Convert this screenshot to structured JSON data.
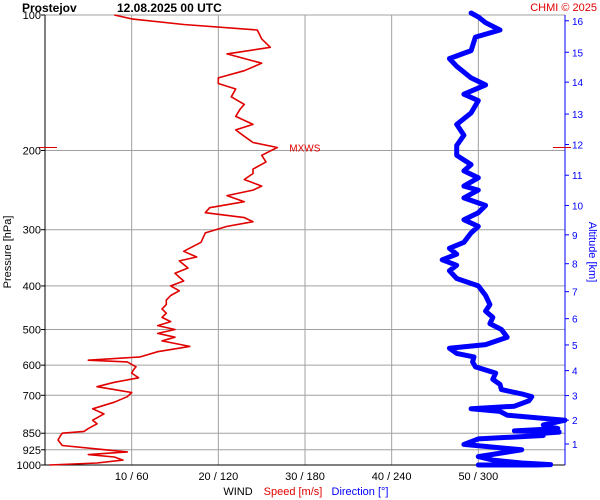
{
  "header": {
    "station": "Prostejov",
    "datetime": "12.08.2025 00 UTC",
    "credit": "CHMI © 2025"
  },
  "colors": {
    "speed": "#e00000",
    "direction": "#0000ff",
    "grid": "#a0a0a0",
    "axis": "#000000"
  },
  "chart_data": {
    "type": "line",
    "ylabel": "Pressure [hPa]",
    "y_scale": "log",
    "ylim": [
      1000,
      100
    ],
    "pressure_ticks": [
      100,
      200,
      300,
      400,
      500,
      600,
      700,
      850,
      925,
      1000
    ],
    "altitude_label": "Altitude [km]",
    "altitude_ticks": [
      {
        "km": 1,
        "hpa": 898
      },
      {
        "km": 2,
        "hpa": 795
      },
      {
        "km": 3,
        "hpa": 701
      },
      {
        "km": 4,
        "hpa": 617
      },
      {
        "km": 5,
        "hpa": 541
      },
      {
        "km": 6,
        "hpa": 473
      },
      {
        "km": 7,
        "hpa": 412
      },
      {
        "km": 8,
        "hpa": 357
      },
      {
        "km": 9,
        "hpa": 308
      },
      {
        "km": 10,
        "hpa": 265
      },
      {
        "km": 11,
        "hpa": 227
      },
      {
        "km": 12,
        "hpa": 194
      },
      {
        "km": 13,
        "hpa": 166
      },
      {
        "km": 14,
        "hpa": 141
      },
      {
        "km": 15,
        "hpa": 121
      },
      {
        "km": 16,
        "hpa": 103
      }
    ],
    "x_ticks": [
      {
        "speed": 10,
        "dir": 60,
        "label": "10 / 60"
      },
      {
        "speed": 20,
        "dir": 120,
        "label": "20 / 120"
      },
      {
        "speed": 30,
        "dir": 180,
        "label": "30 / 180"
      },
      {
        "speed": 40,
        "dir": 240,
        "label": "40 / 240"
      },
      {
        "speed": 50,
        "dir": 300,
        "label": "50 / 300"
      }
    ],
    "xlabel": {
      "wind": "WIND",
      "speed": "Speed [m/s]",
      "direction": "Direction [°]"
    },
    "speed_xlim": [
      0,
      60
    ],
    "direction_xlim": [
      0,
      360
    ],
    "mxws": {
      "label": "MXWS",
      "hpa": 197,
      "speed": 26.8
    },
    "series": [
      {
        "name": "Speed [m/s]",
        "values": [
          [
            1000,
            0.5
          ],
          [
            990,
            6
          ],
          [
            975,
            9
          ],
          [
            960,
            8
          ],
          [
            948,
            5
          ],
          [
            935,
            9.5
          ],
          [
            925,
            7
          ],
          [
            905,
            2
          ],
          [
            880,
            1.5
          ],
          [
            860,
            1.8
          ],
          [
            850,
            2
          ],
          [
            842,
            4.5
          ],
          [
            830,
            5
          ],
          [
            810,
            6
          ],
          [
            795,
            5.5
          ],
          [
            770,
            6.8
          ],
          [
            750,
            5.5
          ],
          [
            725,
            8
          ],
          [
            705,
            9.5
          ],
          [
            690,
            10
          ],
          [
            680,
            8
          ],
          [
            670,
            6
          ],
          [
            655,
            8
          ],
          [
            640,
            10.8
          ],
          [
            625,
            10
          ],
          [
            615,
            10.2
          ],
          [
            605,
            10.5
          ],
          [
            590,
            9.5
          ],
          [
            585,
            5
          ],
          [
            575,
            11
          ],
          [
            560,
            13
          ],
          [
            545,
            16.7
          ],
          [
            530,
            13.5
          ],
          [
            520,
            15
          ],
          [
            510,
            13
          ],
          [
            500,
            15
          ],
          [
            490,
            13
          ],
          [
            480,
            14.5
          ],
          [
            470,
            13.5
          ],
          [
            460,
            14
          ],
          [
            450,
            13.5
          ],
          [
            440,
            14
          ],
          [
            430,
            14
          ],
          [
            420,
            14.5
          ],
          [
            410,
            15.5
          ],
          [
            400,
            14.5
          ],
          [
            390,
            16
          ],
          [
            375,
            15
          ],
          [
            365,
            16.5
          ],
          [
            352,
            15.5
          ],
          [
            345,
            17.5
          ],
          [
            335,
            16
          ],
          [
            320,
            18
          ],
          [
            305,
            18.5
          ],
          [
            295,
            21
          ],
          [
            288,
            24
          ],
          [
            282,
            23
          ],
          [
            275,
            18.5
          ],
          [
            268,
            19
          ],
          [
            260,
            23
          ],
          [
            252,
            21
          ],
          [
            245,
            24
          ],
          [
            240,
            25
          ],
          [
            232,
            23
          ],
          [
            225,
            24
          ],
          [
            220,
            24
          ],
          [
            212,
            25.5
          ],
          [
            205,
            25
          ],
          [
            197,
            26.8
          ],
          [
            192,
            24
          ],
          [
            186,
            23
          ],
          [
            180,
            22
          ],
          [
            175,
            24
          ],
          [
            168,
            22
          ],
          [
            162,
            22.5
          ],
          [
            158,
            23
          ],
          [
            152,
            21.5
          ],
          [
            146,
            22
          ],
          [
            142,
            20
          ],
          [
            138,
            20
          ],
          [
            133,
            23
          ],
          [
            128,
            25
          ],
          [
            122,
            21
          ],
          [
            118,
            26
          ],
          [
            113,
            25
          ],
          [
            108,
            24.5
          ],
          [
            105,
            16
          ],
          [
            102,
            10
          ],
          [
            100,
            8
          ]
        ]
      },
      {
        "name": "Direction [°]",
        "values": [
          [
            1000,
            300
          ],
          [
            1000,
            340
          ],
          [
            998,
            350
          ],
          [
            990,
            330
          ],
          [
            975,
            310
          ],
          [
            958,
            300
          ],
          [
            925,
            330
          ],
          [
            900,
            290
          ],
          [
            875,
            300
          ],
          [
            860,
            345
          ],
          [
            851,
            342
          ],
          [
            845,
            356
          ],
          [
            840,
            325
          ],
          [
            830,
            355
          ],
          [
            815,
            345
          ],
          [
            795,
            360
          ],
          [
            775,
            320
          ],
          [
            760,
            315
          ],
          [
            750,
            295
          ],
          [
            740,
            325
          ],
          [
            720,
            335
          ],
          [
            705,
            337
          ],
          [
            695,
            330
          ],
          [
            680,
            316
          ],
          [
            662,
            315
          ],
          [
            645,
            310
          ],
          [
            625,
            312
          ],
          [
            605,
            298
          ],
          [
            590,
            296
          ],
          [
            575,
            297
          ],
          [
            565,
            285
          ],
          [
            550,
            280
          ],
          [
            540,
            305
          ],
          [
            520,
            320
          ],
          [
            500,
            316
          ],
          [
            485,
            308
          ],
          [
            470,
            310
          ],
          [
            455,
            305
          ],
          [
            440,
            308
          ],
          [
            420,
            305
          ],
          [
            400,
            300
          ],
          [
            385,
            285
          ],
          [
            370,
            280
          ],
          [
            360,
            285
          ],
          [
            350,
            275
          ],
          [
            340,
            285
          ],
          [
            330,
            280
          ],
          [
            320,
            290
          ],
          [
            305,
            295
          ],
          [
            295,
            300
          ],
          [
            285,
            290
          ],
          [
            275,
            300
          ],
          [
            265,
            305
          ],
          [
            255,
            290
          ],
          [
            245,
            300
          ],
          [
            240,
            290
          ],
          [
            230,
            300
          ],
          [
            222,
            290
          ],
          [
            215,
            295
          ],
          [
            205,
            285
          ],
          [
            195,
            285
          ],
          [
            185,
            290
          ],
          [
            175,
            285
          ],
          [
            165,
            295
          ],
          [
            155,
            300
          ],
          [
            150,
            290
          ],
          [
            143,
            305
          ],
          [
            138,
            295
          ],
          [
            130,
            285
          ],
          [
            125,
            280
          ],
          [
            120,
            295
          ],
          [
            112,
            298
          ],
          [
            108,
            315
          ],
          [
            104,
            305
          ],
          [
            101,
            300
          ],
          [
            99,
            295
          ]
        ]
      }
    ],
    "grid": true
  }
}
